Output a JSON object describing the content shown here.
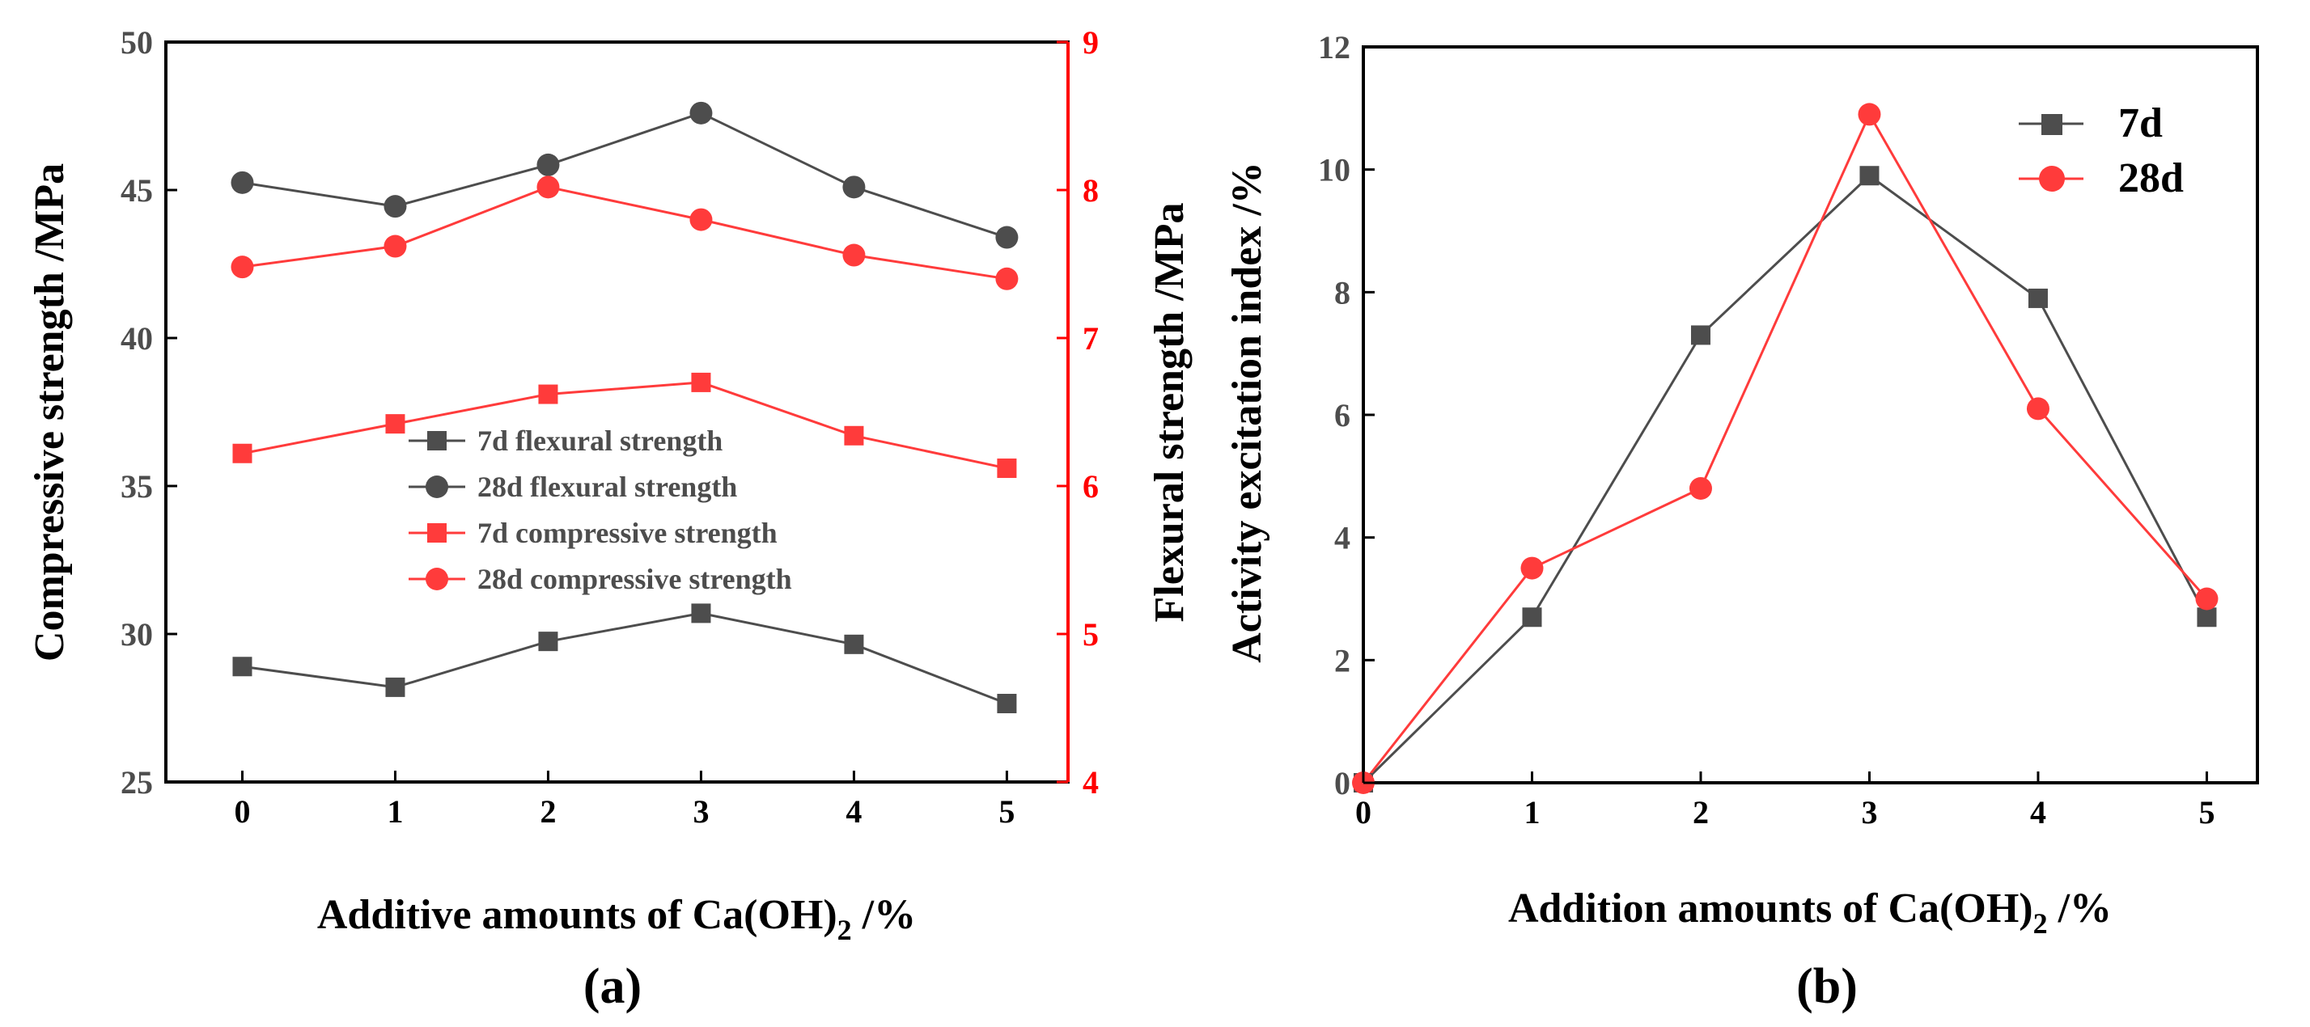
{
  "colors": {
    "gray": "#4d4d4d",
    "red": "#ff3b3b",
    "axis": "#000000",
    "red_axis": "#ff0000"
  },
  "chart_data": [
    {
      "panel": "(a)",
      "type": "line",
      "x": [
        0,
        1,
        2,
        3,
        4,
        5
      ],
      "xticks": [
        "0",
        "1",
        "2",
        "3",
        "4",
        "5"
      ],
      "xlabel": "Additive amounts of Ca(OH)",
      "xlabel_sub": "2",
      "xlabel_unit": " /%",
      "ylabel": "Compressive strength /MPa",
      "ylim": [
        25,
        50
      ],
      "yticks": [
        "25",
        "30",
        "35",
        "40",
        "45",
        "50"
      ],
      "y2label": "Flexural strength /MPa",
      "y2lim": [
        4,
        9
      ],
      "y2ticks": [
        "4",
        "5",
        "6",
        "7",
        "8",
        "9"
      ],
      "series": [
        {
          "name": "7d flexural strength",
          "axis": "right",
          "marker": "square",
          "color": "#4d4d4d",
          "values": [
            4.78,
            4.64,
            4.95,
            5.14,
            4.93,
            4.53
          ]
        },
        {
          "name": "28d flexural strength",
          "axis": "right",
          "marker": "circle",
          "color": "#4d4d4d",
          "values": [
            8.05,
            7.89,
            8.17,
            8.52,
            8.02,
            7.68
          ]
        },
        {
          "name": "7d compressive strength",
          "axis": "left",
          "marker": "square",
          "color": "#ff3b3b",
          "values": [
            36.1,
            37.1,
            38.1,
            38.5,
            36.7,
            35.6
          ]
        },
        {
          "name": "28d compressive strength",
          "axis": "left",
          "marker": "circle",
          "color": "#ff3b3b",
          "values": [
            42.4,
            43.1,
            45.1,
            44.0,
            42.8,
            42.0
          ]
        }
      ]
    },
    {
      "panel": "(b)",
      "type": "line",
      "x": [
        0,
        1,
        2,
        3,
        4,
        5
      ],
      "xticks": [
        "0",
        "1",
        "2",
        "3",
        "4",
        "5"
      ],
      "xlabel": "Addition amounts of Ca(OH)",
      "xlabel_sub": "2",
      "xlabel_unit": " /%",
      "ylabel": "Activity excitation index /%",
      "ylim": [
        0,
        12
      ],
      "yticks": [
        "0",
        "2",
        "4",
        "6",
        "8",
        "10",
        "12"
      ],
      "series": [
        {
          "name": "7d",
          "marker": "square",
          "color": "#4d4d4d",
          "values": [
            0,
            2.7,
            7.3,
            9.9,
            7.9,
            2.7
          ]
        },
        {
          "name": "28d",
          "marker": "circle",
          "color": "#ff3b3b",
          "values": [
            0,
            3.5,
            4.8,
            10.9,
            6.1,
            3.0
          ]
        }
      ]
    }
  ]
}
